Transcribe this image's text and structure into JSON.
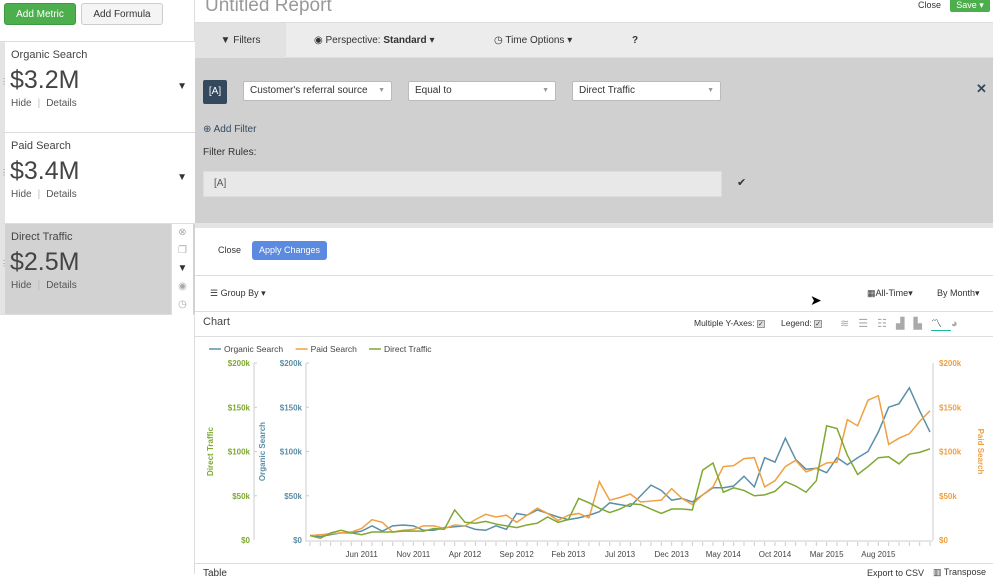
{
  "toolbar": {
    "add_metric": "Add Metric",
    "add_formula": "Add Formula"
  },
  "metrics": [
    {
      "name": "Organic Search",
      "value": "$3.2M",
      "hide": "Hide",
      "details": "Details"
    },
    {
      "name": "Paid Search",
      "value": "$3.4M",
      "hide": "Hide",
      "details": "Details"
    },
    {
      "name": "Direct Traffic",
      "value": "$2.5M",
      "hide": "Hide",
      "details": "Details",
      "selected": true
    }
  ],
  "header": {
    "title": "Untitled Report",
    "close": "Close",
    "save": "Save"
  },
  "tabs": {
    "filters": "Filters",
    "perspective_label": "Perspective:",
    "perspective_value": "Standard",
    "time_options": "Time Options",
    "help": "?"
  },
  "filter": {
    "tag": "[A]",
    "field": "Customer's referral source",
    "operator": "Equal to",
    "value": "Direct Traffic",
    "add_filter": "Add Filter",
    "rules_label": "Filter Rules:",
    "rules_value": "[A]",
    "close": "Close",
    "apply": "Apply Changes"
  },
  "controls": {
    "group_by": "Group By",
    "time_range": "All-Time",
    "interval": "By Month"
  },
  "chart_header": {
    "title": "Chart",
    "multiple_y_axes": "Multiple Y-Axes:",
    "multiple_y_axes_checked": true,
    "legend": "Legend:",
    "legend_checked": true,
    "active_chart_type": "line"
  },
  "footer": {
    "table": "Table",
    "export": "Export to CSV",
    "transpose": "Transpose"
  },
  "colors": {
    "organic": "#5b8fa8",
    "paid": "#f0a040",
    "direct": "#7fa832",
    "green_button": "#4cae4c",
    "apply_button": "#5b8ae0"
  },
  "chart_data": {
    "type": "line",
    "x_start": "Jan 2011",
    "x_interval": "month",
    "x_tick_labels": [
      "Jun 2011",
      "Nov 2011",
      "Apr 2012",
      "Sep 2012",
      "Feb 2013",
      "Jul 2013",
      "Dec 2013",
      "May 2014",
      "Oct 2014",
      "Mar 2015",
      "Aug 2015"
    ],
    "legend_position": "top-left",
    "y_axes": [
      {
        "series": "Direct Traffic",
        "label": "Direct Traffic",
        "side": "left-outer",
        "ylim": [
          0,
          200000
        ],
        "ticks": [
          "$0",
          "$50k",
          "$100k",
          "$150k",
          "$200k"
        ]
      },
      {
        "series": "Organic Search",
        "label": "Organic Search",
        "side": "left-inner",
        "ylim": [
          0,
          200000
        ],
        "ticks": [
          "$0",
          "$50k",
          "$100k",
          "$150k",
          "$200k"
        ]
      },
      {
        "series": "Paid Search",
        "label": "Paid Search",
        "side": "right",
        "ylim": [
          0,
          200000
        ],
        "ticks": [
          "$0",
          "$50k",
          "$100k",
          "$150k",
          "$200k"
        ]
      }
    ],
    "series": [
      {
        "name": "Organic Search",
        "values": [
          5,
          4,
          6,
          8,
          8,
          10,
          16,
          10,
          16,
          17,
          16,
          11,
          11,
          14,
          15,
          16,
          12,
          11,
          16,
          12,
          30,
          28,
          34,
          30,
          26,
          23,
          25,
          28,
          32,
          42,
          40,
          38,
          50,
          62,
          56,
          45,
          47,
          43,
          51,
          59,
          59,
          61,
          72,
          60,
          93,
          88,
          115,
          91,
          80,
          81,
          76,
          93,
          85,
          93,
          100,
          122,
          150,
          154,
          172,
          146,
          122
        ]
      },
      {
        "name": "Paid Search",
        "values": [
          5,
          6,
          7,
          8,
          9,
          13,
          23,
          20,
          9,
          11,
          12,
          16,
          16,
          13,
          17,
          16,
          23,
          29,
          26,
          28,
          20,
          28,
          36,
          30,
          22,
          28,
          30,
          25,
          66,
          45,
          48,
          52,
          43,
          44,
          45,
          58,
          47,
          40,
          51,
          60,
          83,
          84,
          92,
          93,
          60,
          67,
          83,
          90,
          77,
          81,
          87,
          88,
          136,
          129,
          158,
          163,
          108,
          115,
          120,
          134,
          146
        ]
      },
      {
        "name": "Direct Traffic",
        "values": [
          5,
          2,
          8,
          11,
          8,
          6,
          9,
          9,
          9,
          10,
          10,
          10,
          13,
          12,
          34,
          20,
          19,
          21,
          18,
          16,
          14,
          17,
          19,
          26,
          20,
          23,
          47,
          42,
          36,
          31,
          35,
          41,
          40,
          35,
          30,
          35,
          35,
          34,
          79,
          87,
          54,
          59,
          56,
          50,
          51,
          55,
          66,
          61,
          54,
          67,
          129,
          126,
          96,
          74,
          83,
          93,
          94,
          86,
          97,
          99,
          103
        ]
      }
    ],
    "value_unit": "thousands USD"
  }
}
